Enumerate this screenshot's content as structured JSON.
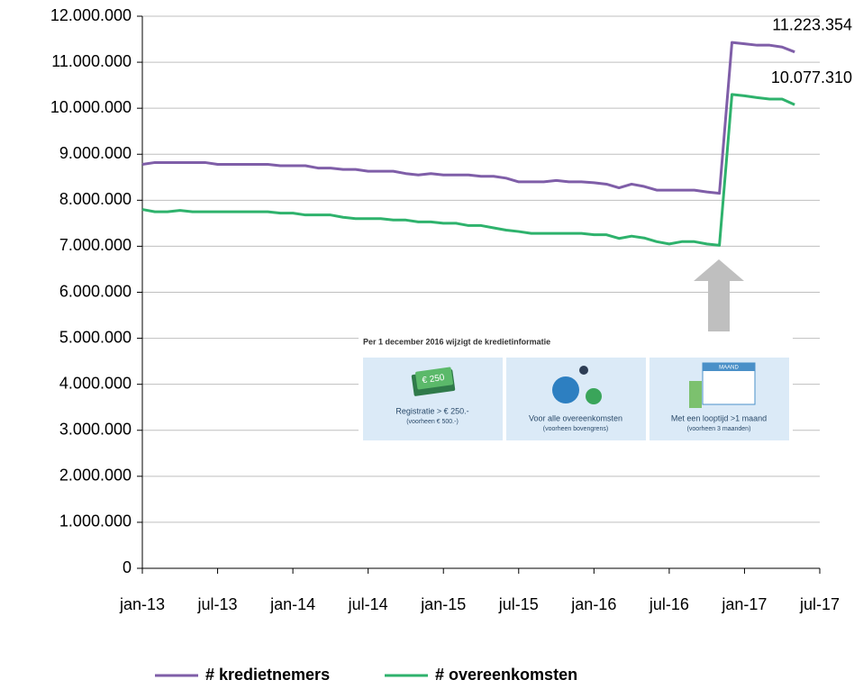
{
  "chart_data": {
    "type": "line",
    "categories": [
      "jan-13",
      null,
      null,
      null,
      null,
      null,
      "jul-13",
      null,
      null,
      null,
      null,
      null,
      "jan-14",
      null,
      null,
      null,
      null,
      null,
      "jul-14",
      null,
      null,
      null,
      null,
      null,
      "jan-15",
      null,
      null,
      null,
      null,
      null,
      "jul-15",
      null,
      null,
      null,
      null,
      null,
      "jan-16",
      null,
      null,
      null,
      null,
      null,
      "jul-16",
      null,
      null,
      null,
      null,
      null,
      "jan-17",
      null,
      null,
      null,
      null,
      null,
      "jul-17"
    ],
    "series": [
      {
        "name": "# kredietnemers",
        "color": "#7f5ea8",
        "values": [
          8780000,
          8820000,
          8820000,
          8820000,
          8820000,
          8820000,
          8780000,
          8780000,
          8780000,
          8780000,
          8780000,
          8750000,
          8750000,
          8750000,
          8700000,
          8700000,
          8670000,
          8670000,
          8630000,
          8630000,
          8630000,
          8580000,
          8550000,
          8580000,
          8550000,
          8550000,
          8550000,
          8520000,
          8520000,
          8480000,
          8400000,
          8400000,
          8400000,
          8430000,
          8400000,
          8400000,
          8380000,
          8350000,
          8270000,
          8350000,
          8300000,
          8220000,
          8220000,
          8220000,
          8220000,
          8180000,
          8150000,
          11430000,
          11400000,
          11370000,
          11370000,
          11330000,
          11223354,
          null,
          null
        ],
        "value_labels": [
          null,
          null,
          null,
          null,
          null,
          null,
          null,
          null,
          null,
          null,
          null,
          null,
          null,
          null,
          null,
          null,
          null,
          null,
          null,
          null,
          null,
          null,
          null,
          null,
          null,
          null,
          null,
          null,
          null,
          null,
          null,
          null,
          null,
          null,
          null,
          null,
          null,
          null,
          null,
          null,
          null,
          null,
          null,
          null,
          null,
          null,
          null,
          null,
          null,
          null,
          null,
          null,
          "11.223.354",
          null,
          null
        ]
      },
      {
        "name": "# overeenkomsten",
        "color": "#2eb26c",
        "values": [
          7800000,
          7750000,
          7750000,
          7780000,
          7750000,
          7750000,
          7750000,
          7750000,
          7750000,
          7750000,
          7750000,
          7720000,
          7720000,
          7680000,
          7680000,
          7680000,
          7630000,
          7600000,
          7600000,
          7600000,
          7570000,
          7570000,
          7530000,
          7530000,
          7500000,
          7500000,
          7450000,
          7450000,
          7400000,
          7350000,
          7320000,
          7280000,
          7280000,
          7280000,
          7280000,
          7280000,
          7250000,
          7250000,
          7170000,
          7220000,
          7180000,
          7100000,
          7050000,
          7100000,
          7100000,
          7050000,
          7020000,
          10300000,
          10270000,
          10230000,
          10200000,
          10200000,
          10077310,
          null,
          null
        ],
        "value_labels": [
          null,
          null,
          null,
          null,
          null,
          null,
          null,
          null,
          null,
          null,
          null,
          null,
          null,
          null,
          null,
          null,
          null,
          null,
          null,
          null,
          null,
          null,
          null,
          null,
          null,
          null,
          null,
          null,
          null,
          null,
          null,
          null,
          null,
          null,
          null,
          null,
          null,
          null,
          null,
          null,
          null,
          null,
          null,
          null,
          null,
          null,
          null,
          null,
          null,
          null,
          null,
          null,
          "10.077.310",
          null,
          null
        ]
      }
    ],
    "ylim": [
      0,
      12000000
    ],
    "yticks": [
      0,
      {
        "value": 1000000,
        "label": "1.000.000"
      },
      {
        "value": 2000000,
        "label": "2.000.000"
      },
      {
        "value": 3000000,
        "label": "3.000.000"
      },
      {
        "value": 4000000,
        "label": "4.000.000"
      },
      {
        "value": 5000000,
        "label": "5.000.000"
      },
      {
        "value": 6000000,
        "label": "6.000.000"
      },
      {
        "value": 7000000,
        "label": "7.000.000"
      },
      {
        "value": 8000000,
        "label": "8.000.000"
      },
      {
        "value": 9000000,
        "label": "9.000.000"
      },
      {
        "value": 10000000,
        "label": "10.000.000"
      },
      {
        "value": 11000000,
        "label": "11.000.000"
      },
      {
        "value": 12000000,
        "label": "12.000.000"
      }
    ],
    "grid": true,
    "legend": "bottom",
    "inset": {
      "title": "Per 1 december 2016 wijzigt de kredietinformatie",
      "panels": [
        {
          "icon": "€ 250",
          "label": "Registratie > € 250.-",
          "sub": "(voorheen € 500.-)"
        },
        {
          "label": "Voor alle overeenkomsten",
          "sub": "(voorheen bovengrens)"
        },
        {
          "icon": "MAAND",
          "label": "Met een looptijd >1 maand",
          "sub": "(voorheen 3 maanden)"
        }
      ]
    }
  }
}
